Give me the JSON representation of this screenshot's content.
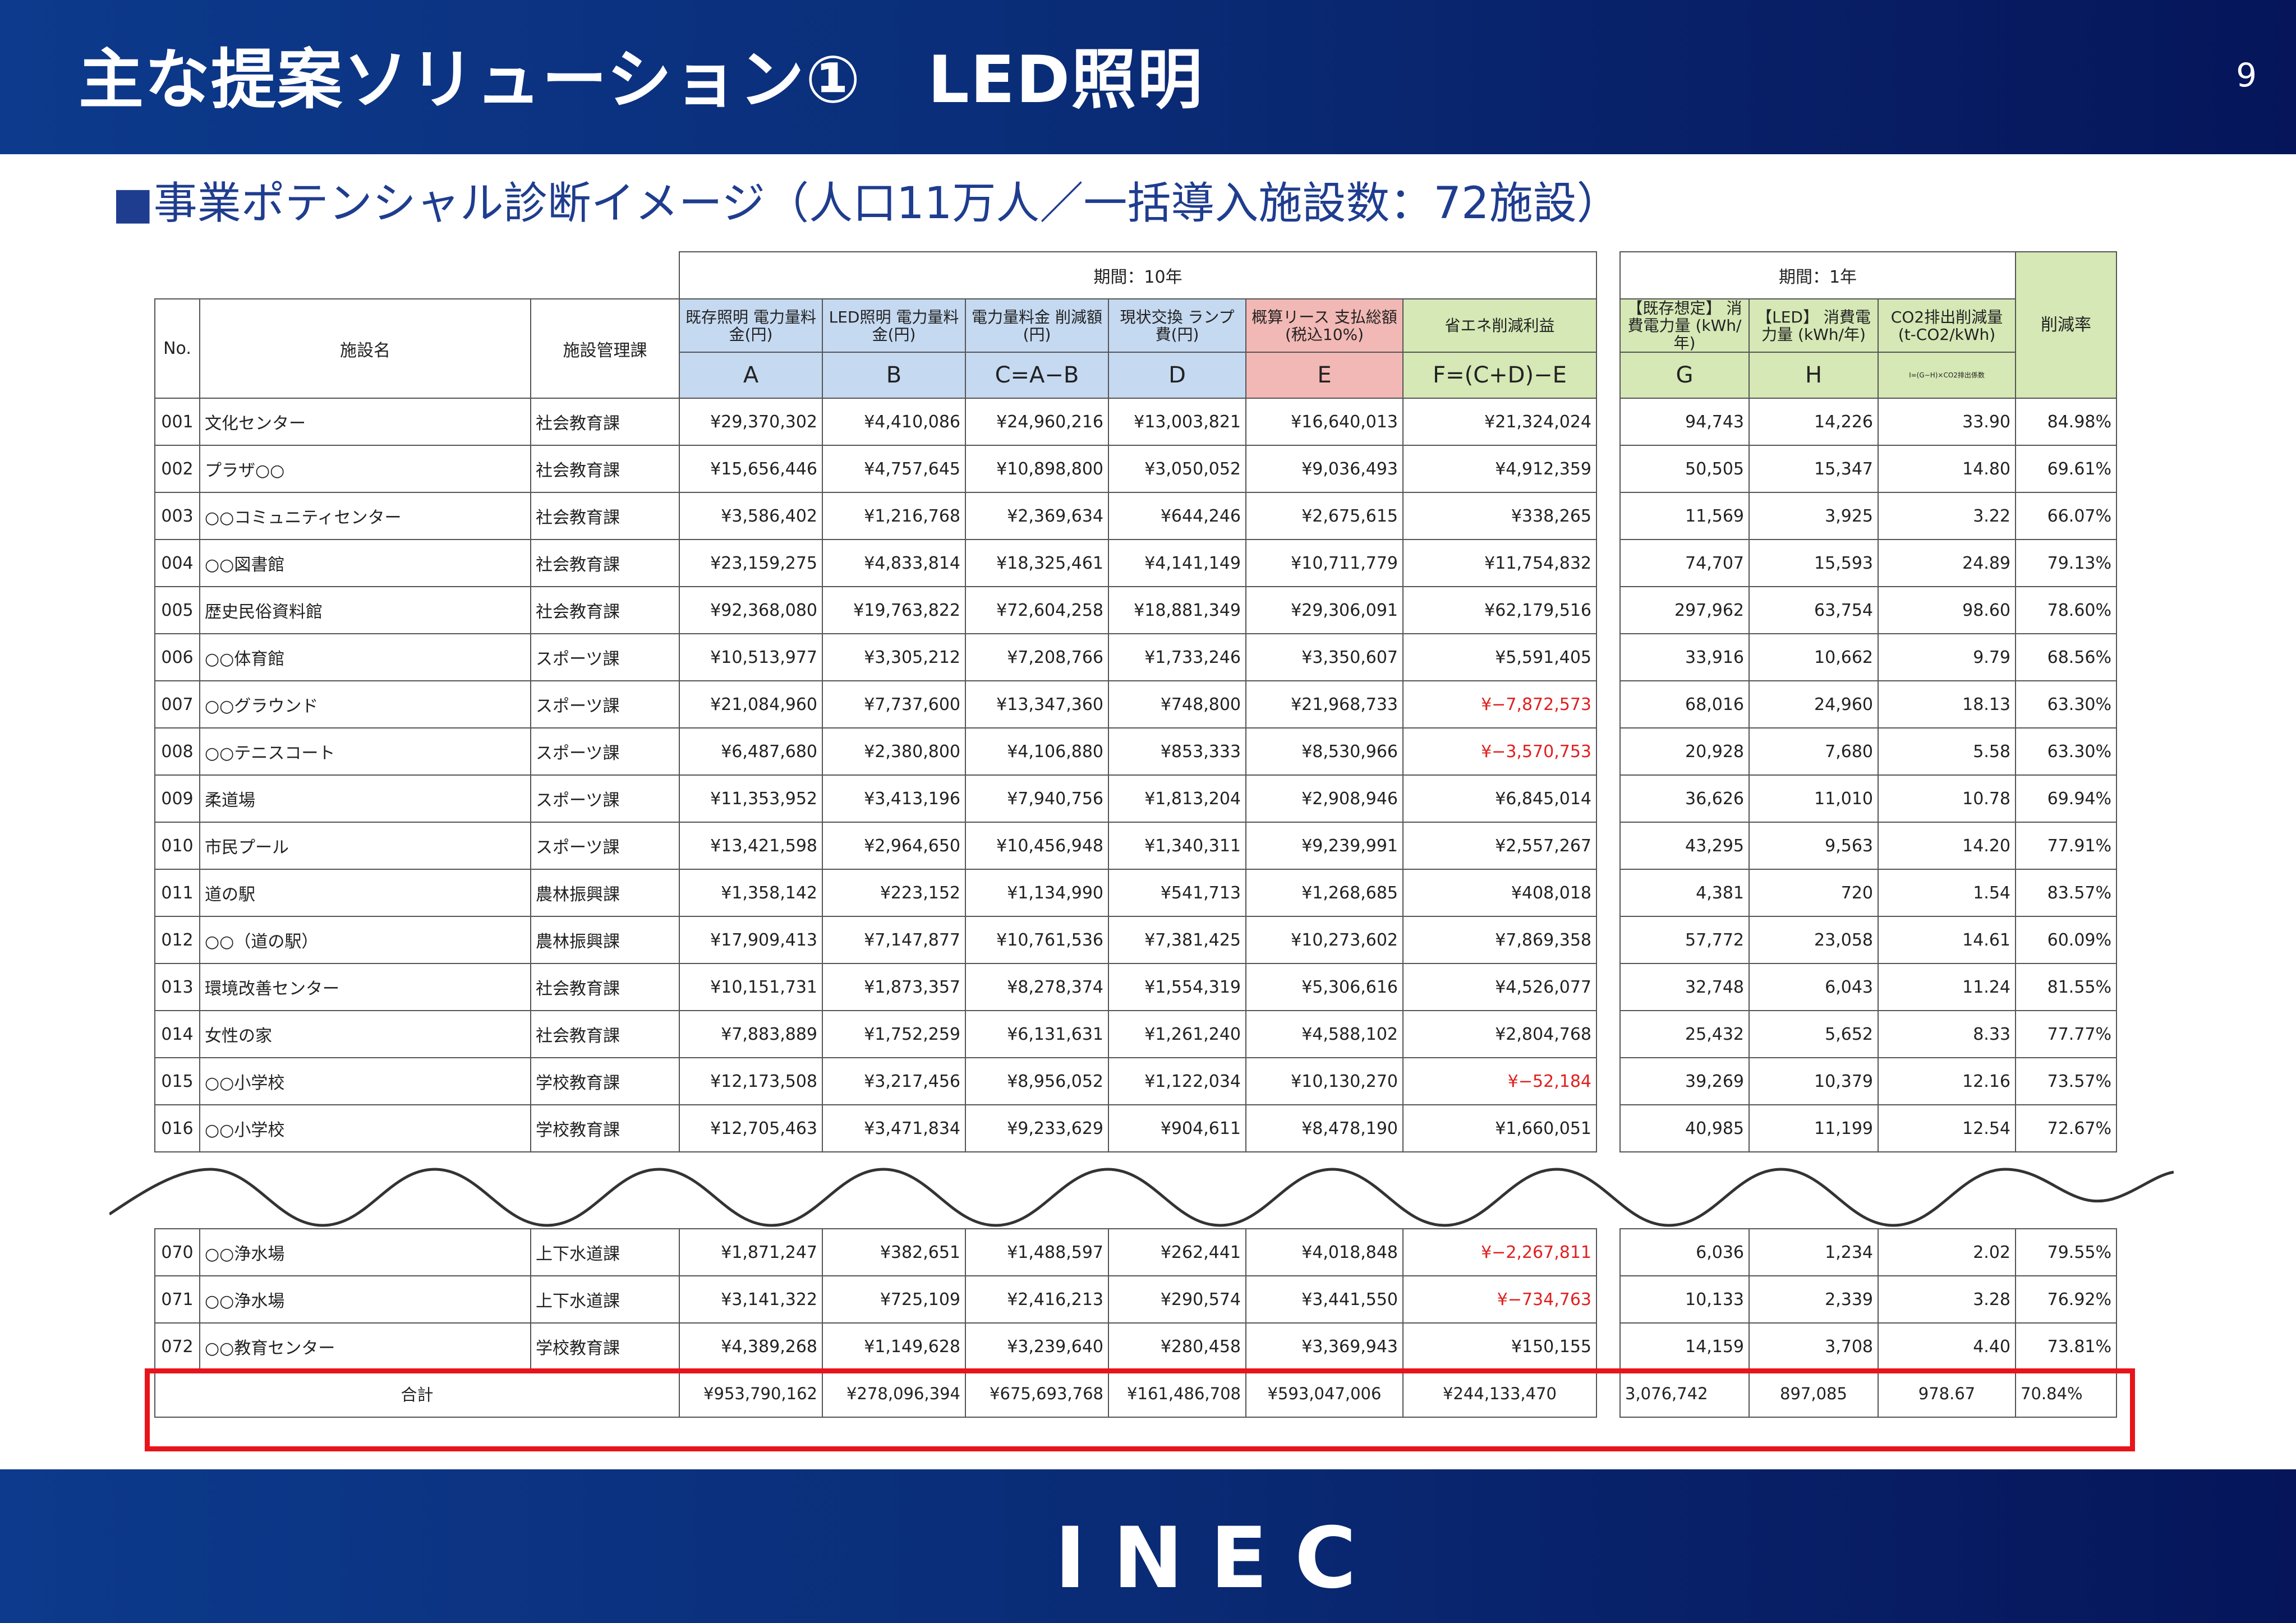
{
  "header": {
    "title": "主な提案ソリューション①　LED照明",
    "page_number": "9"
  },
  "subtitle": "■事業ポテンシャル診断イメージ（人口11万人／一括導入施設数：72施設）",
  "table": {
    "period_10": "期間：10年",
    "period_1": "期間：1年",
    "col_no": "No.",
    "col_name": "施設名",
    "col_dept": "施設管理課",
    "col_A": "既存照明 電力量料金(円)",
    "col_B": "LED照明 電力量料金(円)",
    "col_C": "電力量料金 削減額(円)",
    "col_D": "現状交換 ランプ費(円)",
    "col_E": "概算リース 支払総額 (税込10%)",
    "col_F": "省エネ削減利益",
    "col_G": "【既存想定】 消費電力量 (kWh/年)",
    "col_H": "【LED】 消費電力量 (kWh/年)",
    "col_CO2": "CO2排出削減量 (t-CO2/kWh)",
    "col_rate": "削減率",
    "letter_A": "A",
    "letter_B": "B",
    "letter_C": "C=A−B",
    "letter_D": "D",
    "letter_E": "E",
    "letter_F": "F=(C+D)−E",
    "letter_G": "G",
    "letter_H": "H",
    "letter_CO2": "I=(G−H)×CO2排出係数",
    "rows": [
      {
        "no": "001",
        "name": "文化センター",
        "dept": "社会教育課",
        "a": "¥29,370,302",
        "b": "¥4,410,086",
        "c": "¥24,960,216",
        "d": "¥13,003,821",
        "e": "¥16,640,013",
        "f": "¥21,324,024",
        "g": "94,743",
        "h": "14,226",
        "i": "33.90",
        "rate": "84.98%"
      },
      {
        "no": "002",
        "name": "プラザ○○",
        "dept": "社会教育課",
        "a": "¥15,656,446",
        "b": "¥4,757,645",
        "c": "¥10,898,800",
        "d": "¥3,050,052",
        "e": "¥9,036,493",
        "f": "¥4,912,359",
        "g": "50,505",
        "h": "15,347",
        "i": "14.80",
        "rate": "69.61%"
      },
      {
        "no": "003",
        "name": "○○コミュニティセンター",
        "dept": "社会教育課",
        "a": "¥3,586,402",
        "b": "¥1,216,768",
        "c": "¥2,369,634",
        "d": "¥644,246",
        "e": "¥2,675,615",
        "f": "¥338,265",
        "g": "11,569",
        "h": "3,925",
        "i": "3.22",
        "rate": "66.07%"
      },
      {
        "no": "004",
        "name": "○○図書館",
        "dept": "社会教育課",
        "a": "¥23,159,275",
        "b": "¥4,833,814",
        "c": "¥18,325,461",
        "d": "¥4,141,149",
        "e": "¥10,711,779",
        "f": "¥11,754,832",
        "g": "74,707",
        "h": "15,593",
        "i": "24.89",
        "rate": "79.13%"
      },
      {
        "no": "005",
        "name": "歴史民俗資料館",
        "dept": "社会教育課",
        "a": "¥92,368,080",
        "b": "¥19,763,822",
        "c": "¥72,604,258",
        "d": "¥18,881,349",
        "e": "¥29,306,091",
        "f": "¥62,179,516",
        "g": "297,962",
        "h": "63,754",
        "i": "98.60",
        "rate": "78.60%"
      },
      {
        "no": "006",
        "name": "○○体育館",
        "dept": "スポーツ課",
        "a": "¥10,513,977",
        "b": "¥3,305,212",
        "c": "¥7,208,766",
        "d": "¥1,733,246",
        "e": "¥3,350,607",
        "f": "¥5,591,405",
        "g": "33,916",
        "h": "10,662",
        "i": "9.79",
        "rate": "68.56%"
      },
      {
        "no": "007",
        "name": "○○グラウンド",
        "dept": "スポーツ課",
        "a": "¥21,084,960",
        "b": "¥7,737,600",
        "c": "¥13,347,360",
        "d": "¥748,800",
        "e": "¥21,968,733",
        "f": "¥−7,872,573",
        "neg": true,
        "g": "68,016",
        "h": "24,960",
        "i": "18.13",
        "rate": "63.30%"
      },
      {
        "no": "008",
        "name": "○○テニスコート",
        "dept": "スポーツ課",
        "a": "¥6,487,680",
        "b": "¥2,380,800",
        "c": "¥4,106,880",
        "d": "¥853,333",
        "e": "¥8,530,966",
        "f": "¥−3,570,753",
        "neg": true,
        "g": "20,928",
        "h": "7,680",
        "i": "5.58",
        "rate": "63.30%"
      },
      {
        "no": "009",
        "name": "柔道場",
        "dept": "スポーツ課",
        "a": "¥11,353,952",
        "b": "¥3,413,196",
        "c": "¥7,940,756",
        "d": "¥1,813,204",
        "e": "¥2,908,946",
        "f": "¥6,845,014",
        "g": "36,626",
        "h": "11,010",
        "i": "10.78",
        "rate": "69.94%"
      },
      {
        "no": "010",
        "name": "市民プール",
        "dept": "スポーツ課",
        "a": "¥13,421,598",
        "b": "¥2,964,650",
        "c": "¥10,456,948",
        "d": "¥1,340,311",
        "e": "¥9,239,991",
        "f": "¥2,557,267",
        "g": "43,295",
        "h": "9,563",
        "i": "14.20",
        "rate": "77.91%"
      },
      {
        "no": "011",
        "name": "道の駅",
        "dept": "農林振興課",
        "a": "¥1,358,142",
        "b": "¥223,152",
        "c": "¥1,134,990",
        "d": "¥541,713",
        "e": "¥1,268,685",
        "f": "¥408,018",
        "g": "4,381",
        "h": "720",
        "i": "1.54",
        "rate": "83.57%"
      },
      {
        "no": "012",
        "name": "○○（道の駅）",
        "dept": "農林振興課",
        "a": "¥17,909,413",
        "b": "¥7,147,877",
        "c": "¥10,761,536",
        "d": "¥7,381,425",
        "e": "¥10,273,602",
        "f": "¥7,869,358",
        "g": "57,772",
        "h": "23,058",
        "i": "14.61",
        "rate": "60.09%"
      },
      {
        "no": "013",
        "name": "環境改善センター",
        "dept": "社会教育課",
        "a": "¥10,151,731",
        "b": "¥1,873,357",
        "c": "¥8,278,374",
        "d": "¥1,554,319",
        "e": "¥5,306,616",
        "f": "¥4,526,077",
        "g": "32,748",
        "h": "6,043",
        "i": "11.24",
        "rate": "81.55%"
      },
      {
        "no": "014",
        "name": "女性の家",
        "dept": "社会教育課",
        "a": "¥7,883,889",
        "b": "¥1,752,259",
        "c": "¥6,131,631",
        "d": "¥1,261,240",
        "e": "¥4,588,102",
        "f": "¥2,804,768",
        "g": "25,432",
        "h": "5,652",
        "i": "8.33",
        "rate": "77.77%"
      },
      {
        "no": "015",
        "name": "○○小学校",
        "dept": "学校教育課",
        "a": "¥12,173,508",
        "b": "¥3,217,456",
        "c": "¥8,956,052",
        "d": "¥1,122,034",
        "e": "¥10,130,270",
        "f": "¥−52,184",
        "neg": true,
        "g": "39,269",
        "h": "10,379",
        "i": "12.16",
        "rate": "73.57%"
      },
      {
        "no": "016",
        "name": "○○小学校",
        "dept": "学校教育課",
        "a": "¥12,705,463",
        "b": "¥3,471,834",
        "c": "¥9,233,629",
        "d": "¥904,611",
        "e": "¥8,478,190",
        "f": "¥1,660,051",
        "g": "40,985",
        "h": "11,199",
        "i": "12.54",
        "rate": "72.67%"
      }
    ],
    "rows2": [
      {
        "no": "070",
        "name": "○○浄水場",
        "dept": "上下水道課",
        "a": "¥1,871,247",
        "b": "¥382,651",
        "c": "¥1,488,597",
        "d": "¥262,441",
        "e": "¥4,018,848",
        "f": "¥−2,267,811",
        "neg": true,
        "g": "6,036",
        "h": "1,234",
        "i": "2.02",
        "rate": "79.55%"
      },
      {
        "no": "071",
        "name": "○○浄水場",
        "dept": "上下水道課",
        "a": "¥3,141,322",
        "b": "¥725,109",
        "c": "¥2,416,213",
        "d": "¥290,574",
        "e": "¥3,441,550",
        "f": "¥−734,763",
        "neg": true,
        "g": "10,133",
        "h": "2,339",
        "i": "3.28",
        "rate": "76.92%"
      },
      {
        "no": "072",
        "name": "○○教育センター",
        "dept": "学校教育課",
        "a": "¥4,389,268",
        "b": "¥1,149,628",
        "c": "¥3,239,640",
        "d": "¥280,458",
        "e": "¥3,369,943",
        "f": "¥150,155",
        "g": "14,159",
        "h": "3,708",
        "i": "4.40",
        "rate": "73.81%"
      }
    ],
    "total": {
      "label": "合計",
      "a": "¥953,790,162",
      "b": "¥278,096,394",
      "c": "¥675,693,768",
      "d": "¥161,486,708",
      "e": "¥593,047,006",
      "f": "¥244,133,470",
      "g": "3,076,742",
      "h": "897,085",
      "i": "978.67",
      "rate": "70.84%"
    }
  },
  "footer": {
    "logo": "INEC"
  },
  "colors": {
    "header_bg": "#0a2d78",
    "blue_header": "#c5d9f1",
    "pink_header": "#f2b8b5",
    "green_header": "#d5e8b5",
    "negative": "#e02020",
    "highlight_box": "#e8141b"
  }
}
